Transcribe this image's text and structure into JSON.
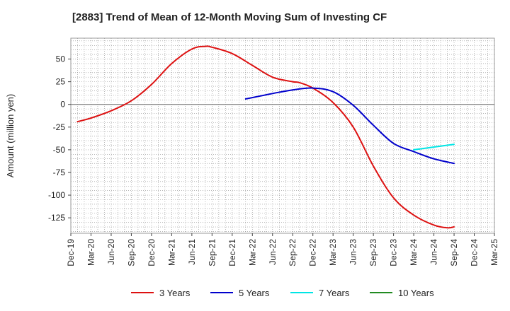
{
  "chart_data": {
    "type": "line",
    "title": "[2883]  Trend of Mean of 12-Month Moving Sum of Investing CF",
    "xlabel": "",
    "ylabel": "Amount (million yen)",
    "ylim": [
      -142,
      73
    ],
    "yticks": [
      50,
      25,
      0,
      -25,
      -50,
      -75,
      -100,
      -125
    ],
    "ytick_labels": [
      "50",
      "25",
      "0",
      "-25",
      "-50",
      "-75",
      "-100",
      "-125"
    ],
    "x_categories": [
      "Dec-19",
      "Mar-20",
      "Jun-20",
      "Sep-20",
      "Dec-20",
      "Mar-21",
      "Jun-21",
      "Sep-21",
      "Dec-21",
      "Mar-22",
      "Jun-22",
      "Sep-22",
      "Dec-22",
      "Mar-23",
      "Jun-23",
      "Sep-23",
      "Dec-23",
      "Mar-24",
      "Jun-24",
      "Sep-24",
      "Dec-24",
      "Mar-25"
    ],
    "grid": true,
    "legend_position": "bottom",
    "series": [
      {
        "name": "3 Years",
        "color": "#dd1111",
        "points": [
          [
            "Jan-20",
            -19
          ],
          [
            "Mar-20",
            -15
          ],
          [
            "Jun-20",
            -7
          ],
          [
            "Sep-20",
            4
          ],
          [
            "Dec-20",
            22
          ],
          [
            "Mar-21",
            45
          ],
          [
            "Jun-21",
            61
          ],
          [
            "Aug-21",
            64
          ],
          [
            "Sep-21",
            63
          ],
          [
            "Dec-21",
            56
          ],
          [
            "Mar-22",
            43
          ],
          [
            "Jun-22",
            30
          ],
          [
            "Sep-22",
            25
          ],
          [
            "Oct-22",
            24
          ],
          [
            "Dec-22",
            18
          ],
          [
            "Mar-23",
            2
          ],
          [
            "Jun-23",
            -25
          ],
          [
            "Sep-23",
            -68
          ],
          [
            "Dec-23",
            -103
          ],
          [
            "Mar-24",
            -122
          ],
          [
            "Jun-24",
            -133
          ],
          [
            "Aug-24",
            -136
          ],
          [
            "Sep-24",
            -135
          ]
        ]
      },
      {
        "name": "5 Years",
        "color": "#0000cc",
        "points": [
          [
            "Feb-22",
            6
          ],
          [
            "Jun-22",
            12
          ],
          [
            "Sep-22",
            16
          ],
          [
            "Dec-22",
            18
          ],
          [
            "Mar-23",
            14
          ],
          [
            "Jun-23",
            -1
          ],
          [
            "Sep-23",
            -23
          ],
          [
            "Dec-23",
            -43
          ],
          [
            "Mar-24",
            -52
          ],
          [
            "Jun-24",
            -60
          ],
          [
            "Sep-24",
            -65
          ]
        ]
      },
      {
        "name": "7 Years",
        "color": "#00e5e5",
        "points": [
          [
            "Mar-24",
            -50
          ],
          [
            "Jun-24",
            -47
          ],
          [
            "Sep-24",
            -44
          ]
        ]
      },
      {
        "name": "10 Years",
        "color": "#228b22",
        "points": []
      }
    ]
  }
}
